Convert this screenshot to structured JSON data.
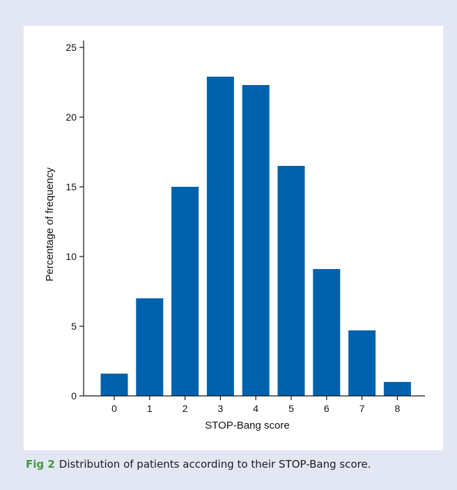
{
  "chart_data": {
    "type": "bar",
    "categories": [
      "0",
      "1",
      "2",
      "3",
      "4",
      "5",
      "6",
      "7",
      "8"
    ],
    "values": [
      1.6,
      7.0,
      15.0,
      22.9,
      22.3,
      16.5,
      9.1,
      4.7,
      1.0
    ],
    "xlabel": "STOP-Bang score",
    "ylabel": "Percentage of frequency",
    "ylim": [
      0,
      25
    ],
    "yticks": [
      0,
      5,
      10,
      15,
      20,
      25
    ],
    "bar_color": "#0061ad",
    "grid": false,
    "legend": "none"
  },
  "caption": {
    "label": "Fig 2",
    "text": "Distribution of patients according to their STOP-Bang score."
  }
}
